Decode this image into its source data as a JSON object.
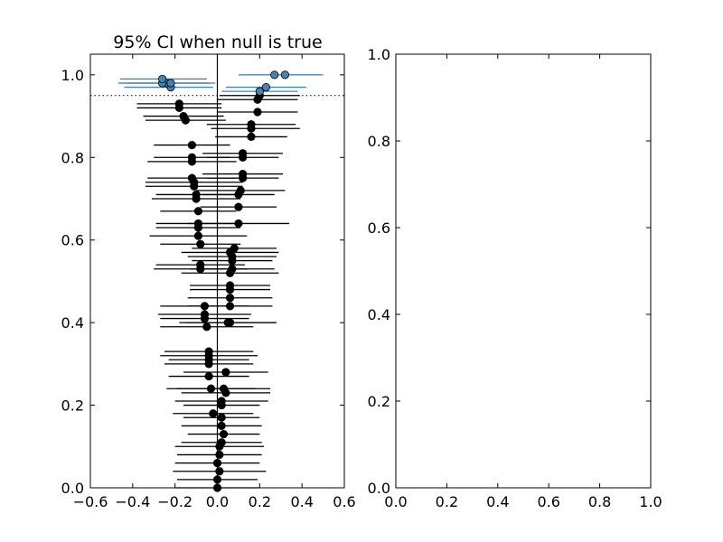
{
  "chart_data": [
    {
      "type": "scatter",
      "title": "95% CI when null is true",
      "xlabel": "",
      "ylabel": "",
      "xlim": [
        -0.6,
        0.6
      ],
      "ylim": [
        0.0,
        1.05
      ],
      "xticks": [
        "−0.6",
        "−0.4",
        "−0.2",
        "0.0",
        "0.2",
        "0.4",
        "0.6"
      ],
      "yticks": [
        "0.0",
        "0.2",
        "0.4",
        "0.6",
        "0.8",
        "1.0"
      ],
      "reference_lines": {
        "vertical_x": 0.0,
        "horizontal_dotted_y": 0.95
      },
      "colors": {
        "covering": "#000000",
        "missing": "#4682b4"
      },
      "series": [
        {
          "marker_color": "#000000",
          "points": [
            {
              "y": 0.0,
              "x": 0.0,
              "lo": -0.2,
              "hi": 0.2
            },
            {
              "y": 0.02,
              "x": 0.0,
              "lo": -0.19,
              "hi": 0.19
            },
            {
              "y": 0.04,
              "x": 0.01,
              "lo": -0.21,
              "hi": 0.23
            },
            {
              "y": 0.06,
              "x": 0.0,
              "lo": -0.2,
              "hi": 0.2
            },
            {
              "y": 0.08,
              "x": 0.01,
              "lo": -0.19,
              "hi": 0.21
            },
            {
              "y": 0.1,
              "x": 0.01,
              "lo": -0.2,
              "hi": 0.22
            },
            {
              "y": 0.11,
              "x": 0.02,
              "lo": -0.17,
              "hi": 0.21
            },
            {
              "y": 0.13,
              "x": 0.03,
              "lo": -0.14,
              "hi": 0.2
            },
            {
              "y": 0.15,
              "x": 0.02,
              "lo": -0.17,
              "hi": 0.21
            },
            {
              "y": 0.17,
              "x": 0.02,
              "lo": -0.16,
              "hi": 0.2
            },
            {
              "y": 0.18,
              "x": -0.02,
              "lo": -0.21,
              "hi": 0.17
            },
            {
              "y": 0.2,
              "x": 0.02,
              "lo": -0.16,
              "hi": 0.2
            },
            {
              "y": 0.21,
              "x": 0.02,
              "lo": -0.2,
              "hi": 0.24
            },
            {
              "y": 0.23,
              "x": 0.04,
              "lo": -0.17,
              "hi": 0.25
            },
            {
              "y": 0.24,
              "x": -0.03,
              "lo": -0.24,
              "hi": 0.18
            },
            {
              "y": 0.24,
              "x": 0.03,
              "lo": -0.19,
              "hi": 0.25
            },
            {
              "y": 0.27,
              "x": -0.04,
              "lo": -0.23,
              "hi": 0.15
            },
            {
              "y": 0.28,
              "x": 0.04,
              "lo": -0.16,
              "hi": 0.24
            },
            {
              "y": 0.3,
              "x": -0.04,
              "lo": -0.25,
              "hi": 0.17
            },
            {
              "y": 0.31,
              "x": -0.04,
              "lo": -0.23,
              "hi": 0.15
            },
            {
              "y": 0.32,
              "x": -0.04,
              "lo": -0.27,
              "hi": 0.19
            },
            {
              "y": 0.33,
              "x": -0.04,
              "lo": -0.25,
              "hi": 0.17
            },
            {
              "y": 0.39,
              "x": -0.05,
              "lo": -0.27,
              "hi": 0.17
            },
            {
              "y": 0.4,
              "x": 0.06,
              "lo": -0.15,
              "hi": 0.27
            },
            {
              "y": 0.4,
              "x": 0.05,
              "lo": -0.18,
              "hi": 0.28
            },
            {
              "y": 0.41,
              "x": -0.06,
              "lo": -0.27,
              "hi": 0.15
            },
            {
              "y": 0.42,
              "x": -0.06,
              "lo": -0.28,
              "hi": 0.16
            },
            {
              "y": 0.44,
              "x": -0.06,
              "lo": -0.27,
              "hi": 0.15
            },
            {
              "y": 0.44,
              "x": 0.06,
              "lo": -0.14,
              "hi": 0.26
            },
            {
              "y": 0.46,
              "x": 0.06,
              "lo": -0.14,
              "hi": 0.26
            },
            {
              "y": 0.48,
              "x": 0.06,
              "lo": -0.13,
              "hi": 0.25
            },
            {
              "y": 0.49,
              "x": 0.06,
              "lo": -0.13,
              "hi": 0.25
            },
            {
              "y": 0.52,
              "x": 0.06,
              "lo": -0.17,
              "hi": 0.29
            },
            {
              "y": 0.53,
              "x": 0.07,
              "lo": -0.13,
              "hi": 0.27
            },
            {
              "y": 0.53,
              "x": -0.08,
              "lo": -0.3,
              "hi": 0.14
            },
            {
              "y": 0.54,
              "x": -0.08,
              "lo": -0.29,
              "hi": 0.13
            },
            {
              "y": 0.55,
              "x": 0.07,
              "lo": -0.12,
              "hi": 0.26
            },
            {
              "y": 0.56,
              "x": 0.07,
              "lo": -0.14,
              "hi": 0.28
            },
            {
              "y": 0.57,
              "x": 0.06,
              "lo": -0.17,
              "hi": 0.29
            },
            {
              "y": 0.58,
              "x": 0.08,
              "lo": -0.12,
              "hi": 0.28
            },
            {
              "y": 0.59,
              "x": -0.08,
              "lo": -0.27,
              "hi": 0.11
            },
            {
              "y": 0.61,
              "x": -0.09,
              "lo": -0.32,
              "hi": 0.14
            },
            {
              "y": 0.63,
              "x": -0.09,
              "lo": -0.29,
              "hi": 0.11
            },
            {
              "y": 0.64,
              "x": -0.09,
              "lo": -0.29,
              "hi": 0.11
            },
            {
              "y": 0.64,
              "x": 0.1,
              "lo": -0.14,
              "hi": 0.34
            },
            {
              "y": 0.67,
              "x": -0.09,
              "lo": -0.27,
              "hi": 0.09
            },
            {
              "y": 0.68,
              "x": 0.1,
              "lo": -0.08,
              "hi": 0.28
            },
            {
              "y": 0.7,
              "x": -0.1,
              "lo": -0.31,
              "hi": 0.11
            },
            {
              "y": 0.71,
              "x": -0.1,
              "lo": -0.29,
              "hi": 0.09
            },
            {
              "y": 0.71,
              "x": 0.1,
              "lo": -0.07,
              "hi": 0.27
            },
            {
              "y": 0.72,
              "x": 0.11,
              "lo": -0.1,
              "hi": 0.32
            },
            {
              "y": 0.73,
              "x": -0.11,
              "lo": -0.34,
              "hi": 0.12
            },
            {
              "y": 0.74,
              "x": -0.11,
              "lo": -0.34,
              "hi": 0.12
            },
            {
              "y": 0.75,
              "x": 0.12,
              "lo": -0.05,
              "hi": 0.29
            },
            {
              "y": 0.75,
              "x": -0.12,
              "lo": -0.33,
              "hi": 0.09
            },
            {
              "y": 0.76,
              "x": 0.12,
              "lo": -0.07,
              "hi": 0.31
            },
            {
              "y": 0.79,
              "x": -0.12,
              "lo": -0.33,
              "hi": 0.09
            },
            {
              "y": 0.8,
              "x": 0.12,
              "lo": -0.05,
              "hi": 0.29
            },
            {
              "y": 0.8,
              "x": -0.12,
              "lo": -0.3,
              "hi": 0.06
            },
            {
              "y": 0.81,
              "x": 0.12,
              "lo": -0.07,
              "hi": 0.31
            },
            {
              "y": 0.83,
              "x": -0.12,
              "lo": -0.3,
              "hi": 0.06
            },
            {
              "y": 0.85,
              "x": 0.16,
              "lo": -0.01,
              "hi": 0.33
            },
            {
              "y": 0.87,
              "x": 0.16,
              "lo": -0.03,
              "hi": 0.39
            },
            {
              "y": 0.88,
              "x": 0.16,
              "lo": -0.05,
              "hi": 0.37
            },
            {
              "y": 0.89,
              "x": -0.15,
              "lo": -0.34,
              "hi": 0.04
            },
            {
              "y": 0.9,
              "x": -0.16,
              "lo": -0.35,
              "hi": 0.03
            },
            {
              "y": 0.91,
              "x": 0.19,
              "lo": 0.0,
              "hi": 0.38
            },
            {
              "y": 0.92,
              "x": -0.18,
              "lo": -0.38,
              "hi": 0.02
            },
            {
              "y": 0.93,
              "x": -0.18,
              "lo": -0.38,
              "hi": 0.02
            },
            {
              "y": 0.94,
              "x": 0.19,
              "lo": 0.0,
              "hi": 0.38
            },
            {
              "y": 0.95,
              "x": 0.2,
              "lo": 0.01,
              "hi": 0.39
            }
          ]
        },
        {
          "marker_color": "#4682b4",
          "points": [
            {
              "y": 0.96,
              "x": 0.2,
              "lo": 0.02,
              "hi": 0.38
            },
            {
              "y": 0.97,
              "x": -0.22,
              "lo": -0.44,
              "hi": -0.02
            },
            {
              "y": 0.97,
              "x": 0.23,
              "lo": 0.04,
              "hi": 0.42
            },
            {
              "y": 0.98,
              "x": -0.24,
              "lo": -0.46,
              "hi": -0.03
            },
            {
              "y": 0.98,
              "x": -0.22,
              "lo": -0.42,
              "hi": -0.01
            },
            {
              "y": 0.98,
              "x": -0.26,
              "lo": -0.47,
              "hi": -0.04
            },
            {
              "y": 0.99,
              "x": -0.26,
              "lo": -0.46,
              "hi": -0.05
            },
            {
              "y": 1.0,
              "x": 0.27,
              "lo": 0.1,
              "hi": 0.5
            },
            {
              "y": 1.0,
              "x": 0.32,
              "lo": 0.12,
              "hi": 0.48
            }
          ]
        }
      ]
    },
    {
      "type": "scatter",
      "title": "",
      "xlabel": "",
      "ylabel": "",
      "xlim": [
        0.0,
        1.0
      ],
      "ylim": [
        0.0,
        1.0
      ],
      "xticks": [
        "0.0",
        "0.2",
        "0.4",
        "0.6",
        "0.8",
        "1.0"
      ],
      "yticks": [
        "0.0",
        "0.2",
        "0.4",
        "0.6",
        "0.8",
        "1.0"
      ],
      "series": []
    }
  ]
}
